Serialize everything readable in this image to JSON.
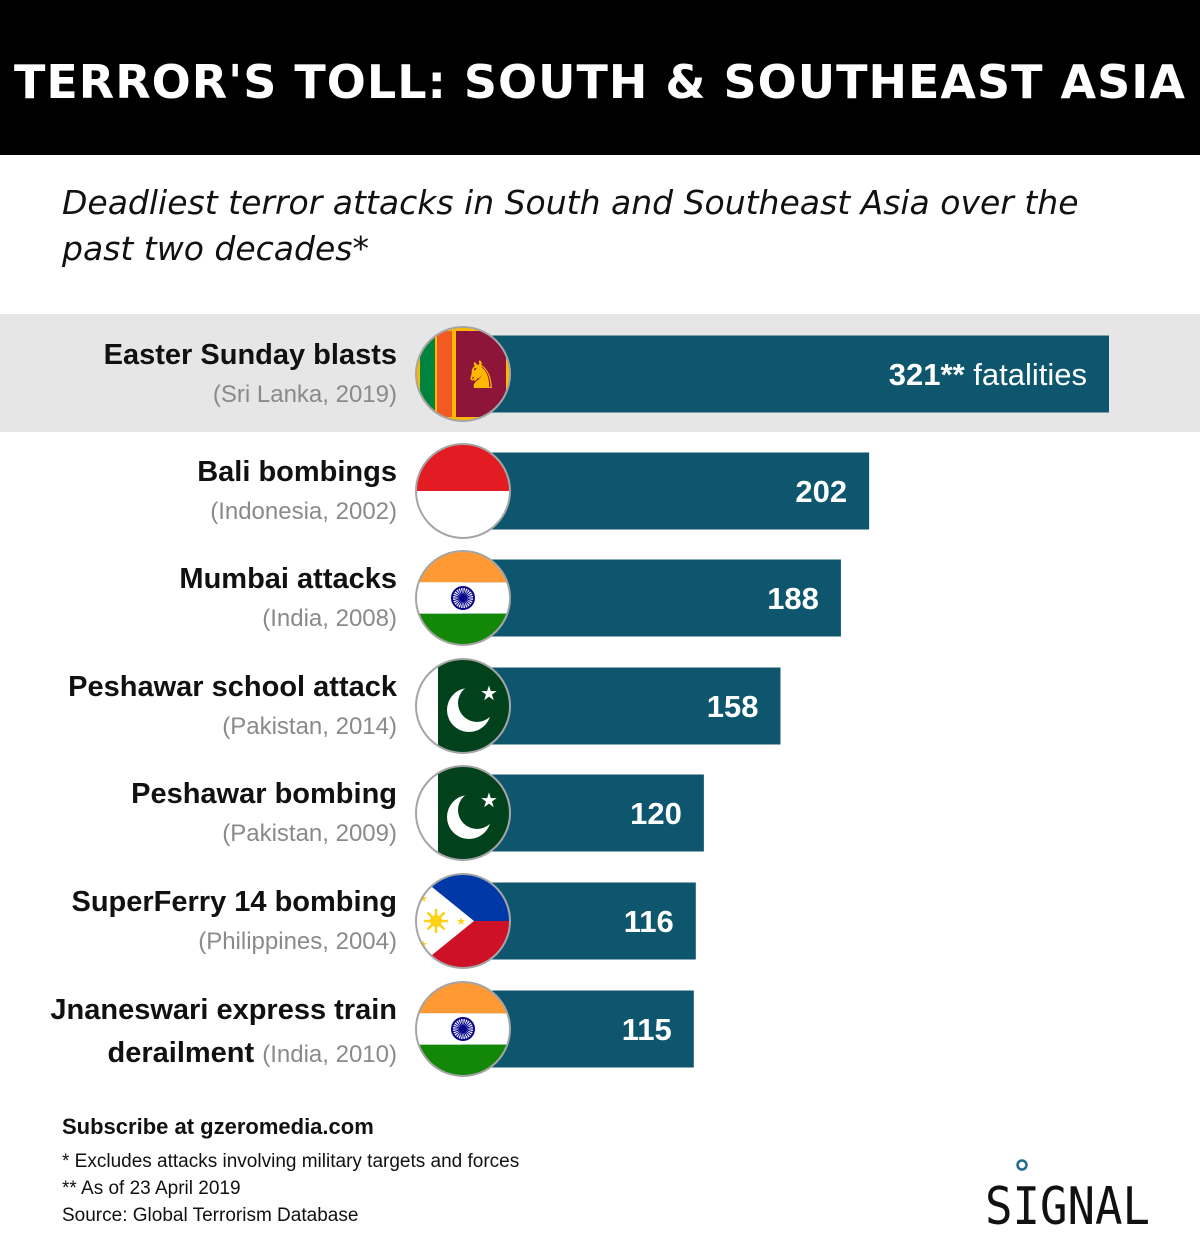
{
  "title": "TERROR'S TOLL: SOUTH & SOUTHEAST ASIA",
  "subtitle": "Deadliest terror attacks in South and Southeast Asia over the past two decades*",
  "chart_data": {
    "type": "bar",
    "orientation": "horizontal",
    "categories": [
      "Easter Sunday blasts",
      "Bali bombings",
      "Mumbai attacks",
      "Peshawar school attack",
      "Peshawar bombing",
      "SuperFerry 14 bombing",
      "Jnaneswari express train derailment"
    ],
    "details": [
      "(Sri Lanka, 2019)",
      "(Indonesia, 2002)",
      "(India, 2008)",
      "(Pakistan, 2014)",
      "(Pakistan, 2009)",
      "(Philippines, 2004)",
      "(India, 2010)"
    ],
    "label_lines": [
      [
        "Easter Sunday blasts"
      ],
      [
        "Bali bombings"
      ],
      [
        "Mumbai attacks"
      ],
      [
        "Peshawar school attack"
      ],
      [
        "Peshawar bombing"
      ],
      [
        "SuperFerry 14 bombing"
      ],
      [
        "Jnaneswari express train",
        "derailment"
      ]
    ],
    "values": [
      321,
      202,
      188,
      158,
      120,
      116,
      115
    ],
    "value_labels": [
      "321**",
      "202",
      "188",
      "158",
      "120",
      "116",
      "115"
    ],
    "first_value_suffix": "fatalities",
    "flags": [
      "sri-lanka",
      "indonesia",
      "india",
      "pakistan",
      "pakistan",
      "philippines",
      "india"
    ],
    "highlighted_index": 0,
    "bar_color": "#0d566e",
    "highlight_color": "#e6e6e6",
    "xlim": [
      0,
      321
    ],
    "grid": false,
    "legend": "none"
  },
  "footer": {
    "subscribe": "Subscribe at gzeromedia.com",
    "notes": [
      "* Excludes attacks involving military targets and forces",
      "** As of 23 April 2019",
      "Source: Global Terrorism Database"
    ]
  },
  "logo": {
    "text": "SIGNAL",
    "accent_color": "#1f6f8b"
  }
}
